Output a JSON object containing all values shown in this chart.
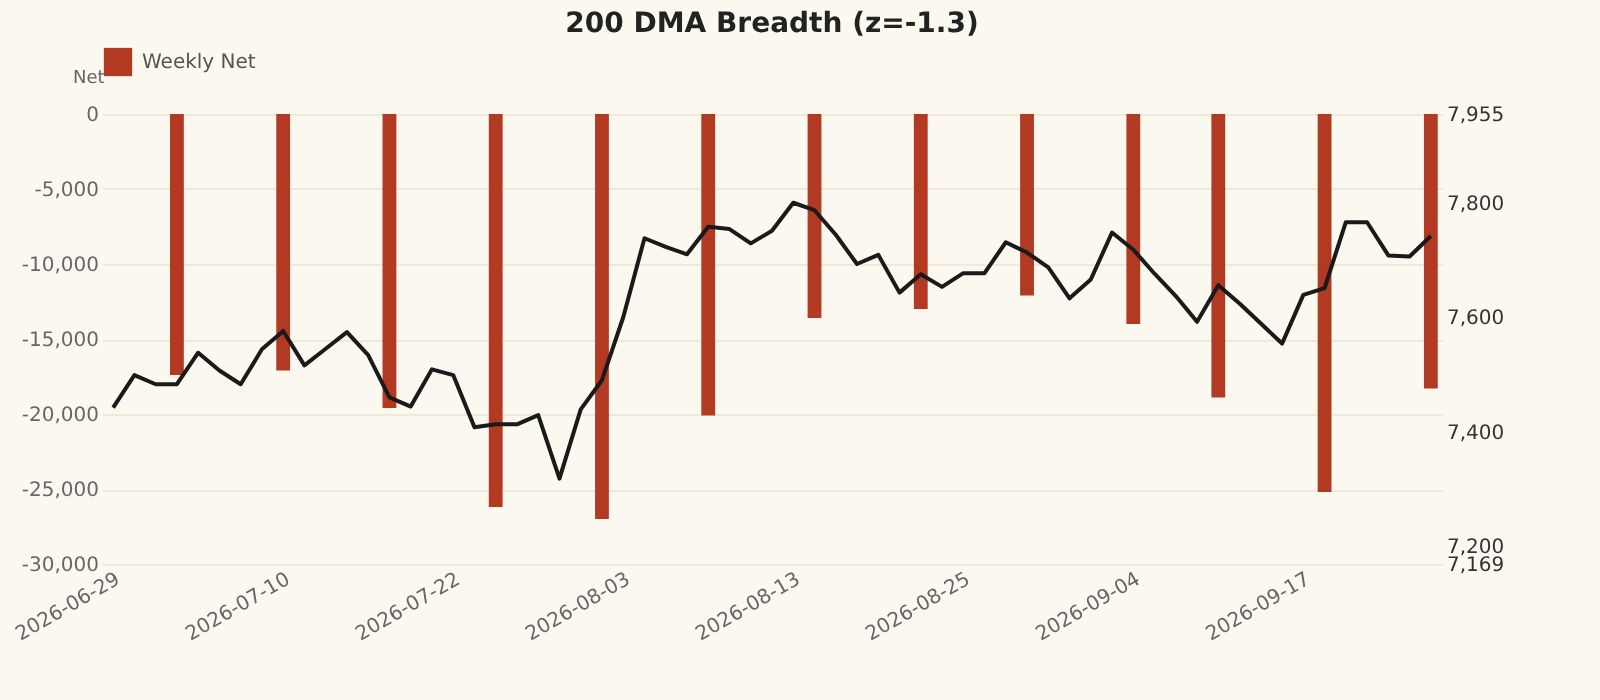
{
  "chart_data": {
    "type": "bar",
    "title": "200 DMA Breadth (z=-1.3)",
    "ylabel": "Net",
    "categories": [
      "2026-06-29",
      null,
      null,
      null,
      null,
      null,
      null,
      null,
      "2026-07-10",
      null,
      null,
      null,
      null,
      null,
      null,
      null,
      "2026-07-22",
      null,
      null,
      null,
      null,
      null,
      null,
      null,
      "2026-08-03",
      null,
      null,
      null,
      null,
      null,
      null,
      null,
      "2026-08-13",
      null,
      null,
      null,
      null,
      null,
      null,
      null,
      "2026-08-25",
      null,
      null,
      null,
      null,
      null,
      null,
      null,
      "2026-09-04",
      null,
      null,
      null,
      null,
      null,
      null,
      null,
      "2026-09-17",
      null,
      null,
      null,
      null,
      null,
      null
    ],
    "series": [
      {
        "name": "Weekly Net",
        "color": "#b33a22",
        "values": [
          null,
          null,
          null,
          -17400,
          null,
          null,
          null,
          null,
          -17100,
          null,
          null,
          null,
          null,
          -19600,
          null,
          null,
          null,
          null,
          -26200,
          null,
          null,
          null,
          null,
          -27000,
          null,
          null,
          null,
          null,
          -20100,
          null,
          null,
          null,
          null,
          -13600,
          null,
          null,
          null,
          null,
          -13000,
          null,
          null,
          null,
          null,
          -12100,
          null,
          null,
          null,
          null,
          -14000,
          null,
          null,
          null,
          -18900,
          null,
          null,
          null,
          null,
          -25200,
          null,
          null,
          null,
          null,
          -18300
        ]
      },
      {
        "type": "line",
        "axis": "y2",
        "color": "#1a1a1a",
        "values": [
          7442,
          7499,
          7483,
          7483,
          7538,
          7507,
          7483,
          7544,
          7576,
          7516,
          7545,
          7574,
          7534,
          7460,
          7444,
          7509,
          7499,
          7408,
          7413,
          7413,
          7429,
          7318,
          7439,
          7490,
          7600,
          7738,
          7723,
          7710,
          7758,
          7754,
          7729,
          7751,
          7800,
          7787,
          7744,
          7693,
          7709,
          7643,
          7675,
          7653,
          7677,
          7677,
          7731,
          7713,
          7687,
          7633,
          7666,
          7748,
          7718,
          7676,
          7637,
          7592,
          7656,
          7624,
          7589,
          7554,
          7639,
          7651,
          7766,
          7766,
          7708,
          7706,
          7742
        ]
      }
    ],
    "ylim": [
      -30000,
      0
    ],
    "yticks": [
      {
        "value": -30000,
        "label": "-30,000"
      },
      {
        "value": -25000,
        "label": "-25,000"
      },
      {
        "value": -20000,
        "label": "-20,000"
      },
      {
        "value": -15000,
        "label": "-15,000"
      },
      {
        "value": -10000,
        "label": "-10,000"
      },
      {
        "value": -5000,
        "label": "-5,000"
      },
      0
    ],
    "y2lim": [
      7169,
      7955
    ],
    "y2ticks": [
      {
        "value": 7169,
        "label": "7,169"
      },
      {
        "value": 7200,
        "label": "7,200"
      },
      {
        "value": 7400,
        "label": "7,400"
      },
      {
        "value": 7600,
        "label": "7,600"
      },
      {
        "value": 7800,
        "label": "7,800"
      },
      {
        "value": 7955,
        "label": "7,955"
      }
    ],
    "grid": "y",
    "legend": "top"
  }
}
